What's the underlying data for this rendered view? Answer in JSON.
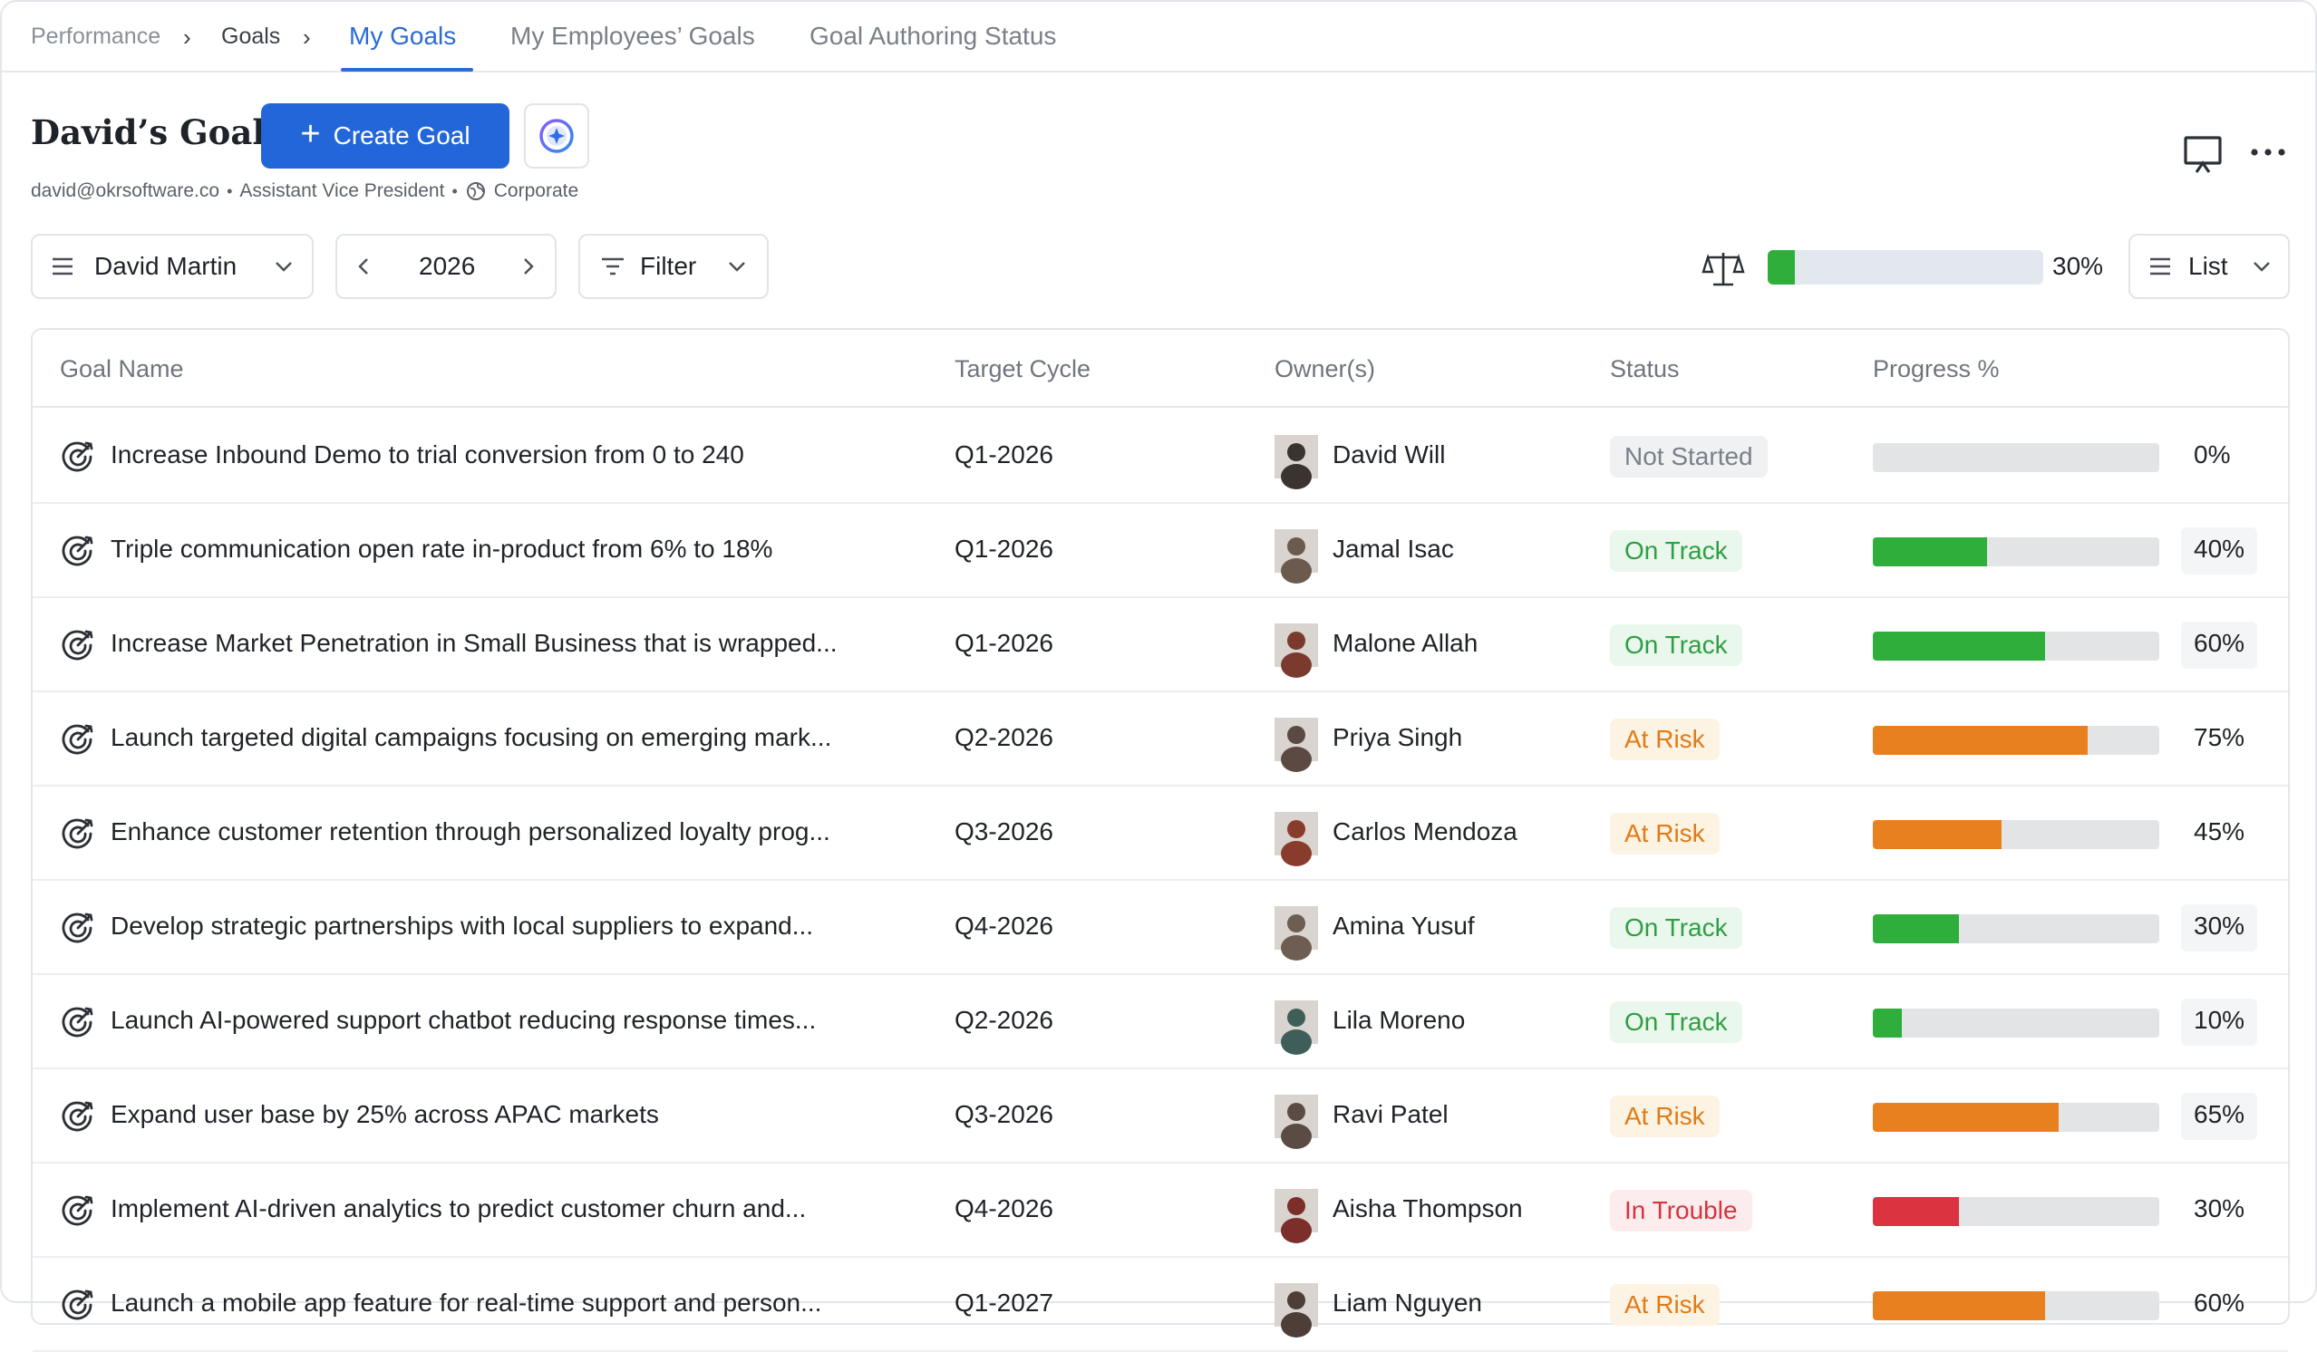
{
  "breadcrumb": {
    "root": "Performance",
    "parent": "Goals"
  },
  "tabs": [
    "My Goals",
    "My Employees’ Goals",
    "Goal Authoring Status"
  ],
  "header": {
    "title": "David’s Goals",
    "create_label": "Create Goal",
    "email": "david@okrsoftware.co",
    "role": "Assistant Vice President",
    "department": "Corporate"
  },
  "controls": {
    "person": "David Martin",
    "year": "2026",
    "filter": "Filter",
    "overall_progress": 30,
    "overall_label": "30%",
    "view": "List"
  },
  "table": {
    "columns": [
      "Goal Name",
      "Target Cycle",
      "Owner(s)",
      "Status",
      "Progress %"
    ],
    "rows": [
      {
        "goal": "Increase Inbound Demo to trial conversion from 0 to 240",
        "cycle": "Q1-2026",
        "owner": "David Will",
        "status": "Not Started",
        "progress": 0,
        "progress_label": "0%"
      },
      {
        "goal": "Triple communication open rate in-product from 6% to 18%",
        "cycle": "Q1-2026",
        "owner": "Jamal Isac",
        "status": "On Track",
        "progress": 40,
        "progress_label": "40%"
      },
      {
        "goal": "Increase Market Penetration in Small Business that is wrapped...",
        "cycle": "Q1-2026",
        "owner": "Malone Allah",
        "status": "On Track",
        "progress": 60,
        "progress_label": "60%"
      },
      {
        "goal": "Launch targeted digital campaigns focusing on emerging mark...",
        "cycle": "Q2-2026",
        "owner": "Priya Singh",
        "status": "At Risk",
        "progress": 75,
        "progress_label": "75%"
      },
      {
        "goal": "Enhance customer retention through personalized loyalty prog...",
        "cycle": "Q3-2026",
        "owner": "Carlos Mendoza",
        "status": "At Risk",
        "progress": 45,
        "progress_label": "45%"
      },
      {
        "goal": "Develop strategic partnerships with local suppliers to expand...",
        "cycle": "Q4-2026",
        "owner": "Amina Yusuf",
        "status": "On Track",
        "progress": 30,
        "progress_label": "30%"
      },
      {
        "goal": "Launch AI-powered support chatbot reducing response times...",
        "cycle": "Q2-2026",
        "owner": "Lila Moreno",
        "status": "On Track",
        "progress": 10,
        "progress_label": "10%"
      },
      {
        "goal": "Expand user base by 25% across APAC markets",
        "cycle": "Q3-2026",
        "owner": "Ravi Patel",
        "status": "At Risk",
        "progress": 65,
        "progress_label": "65%"
      },
      {
        "goal": "Implement AI-driven analytics to predict customer churn and...",
        "cycle": "Q4-2026",
        "owner": "Aisha Thompson",
        "status": "In Trouble",
        "progress": 30,
        "progress_label": "30%"
      },
      {
        "goal": "Launch a mobile app feature for real-time support and person...",
        "cycle": "Q1-2027",
        "owner": "Liam Nguyen",
        "status": "At Risk",
        "progress": 60,
        "progress_label": "60%"
      }
    ]
  },
  "status_colors": {
    "Not Started": {
      "fg": "#7a8088",
      "bg": "#f0f1f3",
      "bar": "#bfc3c8"
    },
    "On Track": {
      "fg": "#2f9e44",
      "bg": "#eaf7ec",
      "bar": "#2fae3c"
    },
    "At Risk": {
      "fg": "#e07b18",
      "bg": "#fdf3e2",
      "bar": "#e8801f"
    },
    "In Trouble": {
      "fg": "#d63440",
      "bg": "#fdecee",
      "bar": "#dc3340"
    }
  },
  "colors": {
    "accent": "#2366d9",
    "progress_green": "#2fae3c"
  },
  "icons": [
    "chevron-right-icon",
    "plus-icon",
    "ai-sparkle-icon",
    "globe-icon",
    "presentation-icon",
    "more-icon",
    "menu-icon",
    "chevron-down-icon",
    "chevron-left-icon",
    "filter-icon",
    "balance-scale-icon",
    "list-icon",
    "goal-target-icon",
    "avatar"
  ]
}
